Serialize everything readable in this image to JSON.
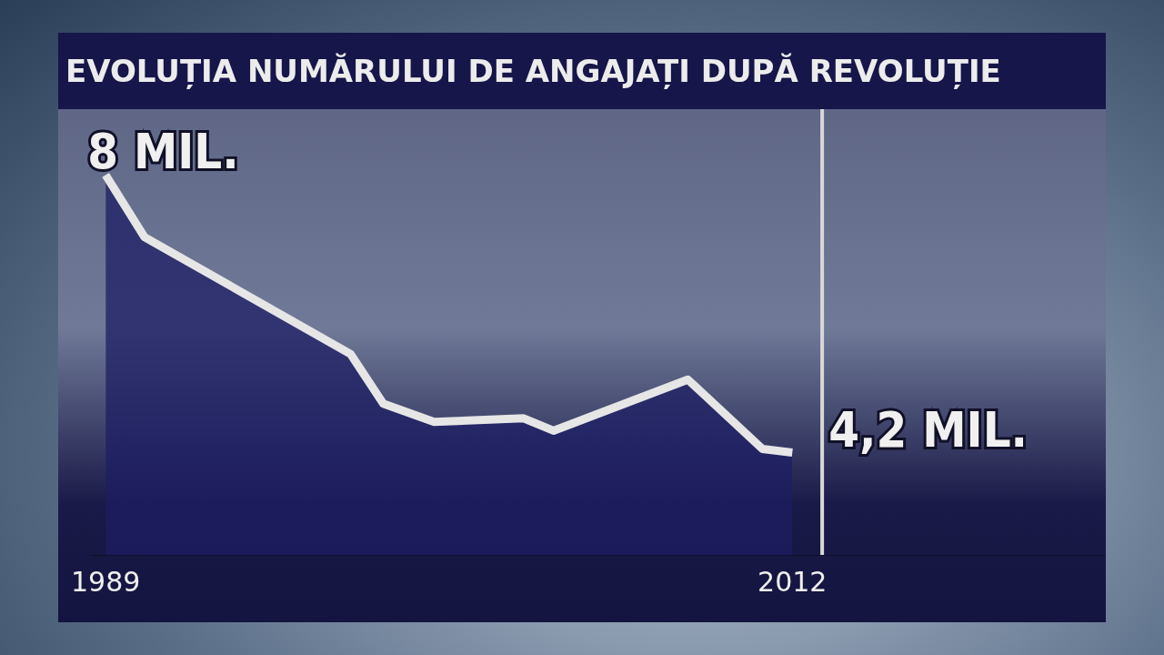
{
  "chart_data": {
    "type": "area",
    "title": "EVOLUȚIA NUMĂRULUI DE ANGAJAȚI DUPĂ REVOLUȚIE",
    "x": [
      1989,
      1990.3,
      1997.2,
      1998.3,
      2000,
      2003,
      2004,
      2008.5,
      2011,
      2012
    ],
    "series": [
      {
        "color": "#e6e6e6",
        "values": [
          8,
          7.15,
          5.55,
          4.87,
          4.62,
          4.67,
          4.5,
          5.2,
          4.25,
          4.2
        ],
        "value_labels": [
          "8 MIL.",
          null,
          null,
          null,
          null,
          null,
          null,
          null,
          null,
          "4,2 MIL."
        ]
      }
    ],
    "xlim": [
      1988.5,
      2022.5
    ],
    "xticks": [
      {
        "value": 1989,
        "label": "1989"
      },
      {
        "value": 2012,
        "label": "2012"
      }
    ],
    "ylim": [
      2.8,
      8.9
    ],
    "tick_labels": "x",
    "grid": false,
    "legend": false,
    "ref_lines": [
      {
        "axis": "x",
        "value": 2013,
        "color": "#d8d8d8"
      }
    ]
  }
}
